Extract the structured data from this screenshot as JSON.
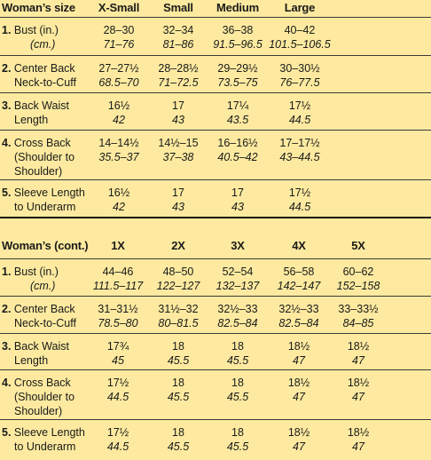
{
  "section1": {
    "header": [
      "Woman’s size",
      "X-Small",
      "Small",
      "Medium",
      "Large"
    ],
    "rows": [
      {
        "num": "1.",
        "label": [
          "Bust (in.)",
          "(cm.)"
        ],
        "cm_label": true,
        "values": [
          [
            "28–30",
            "71–76"
          ],
          [
            "32–34",
            "81–86"
          ],
          [
            "36–38",
            "91.5–96.5"
          ],
          [
            "40–42",
            "101.5–106.5"
          ]
        ]
      },
      {
        "num": "2.",
        "label": [
          "Center Back",
          "Neck-to-Cuff"
        ],
        "values": [
          [
            "27–27½",
            "68.5–70"
          ],
          [
            "28–28½",
            "71–72.5"
          ],
          [
            "29–29½",
            "73.5–75"
          ],
          [
            "30–30½",
            "76–77.5"
          ]
        ]
      },
      {
        "num": "3.",
        "label": [
          "Back Waist",
          "Length"
        ],
        "values": [
          [
            "16½",
            "42"
          ],
          [
            "17",
            "43"
          ],
          [
            "17¼",
            "43.5"
          ],
          [
            "17½",
            "44.5"
          ]
        ]
      },
      {
        "num": "4.",
        "label": [
          "Cross Back",
          "(Shoulder to",
          "Shoulder)"
        ],
        "values": [
          [
            "14–14½",
            "35.5–37"
          ],
          [
            "14½–15",
            "37–38"
          ],
          [
            "16–16½",
            "40.5–42"
          ],
          [
            "17–17½",
            "43–44.5"
          ]
        ]
      },
      {
        "num": "5.",
        "label": [
          "Sleeve Length",
          "to Underarm"
        ],
        "values": [
          [
            "16½",
            "42"
          ],
          [
            "17",
            "43"
          ],
          [
            "17",
            "43"
          ],
          [
            "17½",
            "44.5"
          ]
        ]
      }
    ]
  },
  "section2": {
    "header": [
      "Woman’s (cont.)",
      "1X",
      "2X",
      "3X",
      "4X",
      "5X"
    ],
    "rows": [
      {
        "num": "1.",
        "label": [
          "Bust (in.)",
          "(cm.)"
        ],
        "cm_label": true,
        "values": [
          [
            "44–46",
            "111.5–117"
          ],
          [
            "48–50",
            "122–127"
          ],
          [
            "52–54",
            "132–137"
          ],
          [
            "56–58",
            "142–147"
          ],
          [
            "60–62",
            "152–158"
          ]
        ]
      },
      {
        "num": "2.",
        "label": [
          "Center Back",
          "Neck-to-Cuff"
        ],
        "values": [
          [
            "31–31½",
            "78.5–80"
          ],
          [
            "31½–32",
            "80–81.5"
          ],
          [
            "32½–33",
            "82.5–84"
          ],
          [
            "32½–33",
            "82.5–84"
          ],
          [
            "33–33½",
            "84–85"
          ]
        ]
      },
      {
        "num": "3.",
        "label": [
          "Back Waist",
          "Length"
        ],
        "values": [
          [
            "17¾",
            "45"
          ],
          [
            "18",
            "45.5"
          ],
          [
            "18",
            "45.5"
          ],
          [
            "18½",
            "47"
          ],
          [
            "18½",
            "47"
          ]
        ]
      },
      {
        "num": "4.",
        "label": [
          "Cross Back",
          "(Shoulder to",
          "Shoulder)"
        ],
        "values": [
          [
            "17½",
            "44.5"
          ],
          [
            "18",
            "45.5"
          ],
          [
            "18",
            "45.5"
          ],
          [
            "18½",
            "47"
          ],
          [
            "18½",
            "47"
          ]
        ]
      },
      {
        "num": "5.",
        "label": [
          "Sleeve Length",
          "to Underarm"
        ],
        "values": [
          [
            "17½",
            "44.5"
          ],
          [
            "18",
            "45.5"
          ],
          [
            "18",
            "45.5"
          ],
          [
            "18½",
            "47"
          ],
          [
            "18½",
            "47"
          ]
        ]
      }
    ]
  },
  "colors": {
    "background": "#fdeaa0",
    "rule": "#3a3a3a",
    "text": "#1a1a1a"
  }
}
